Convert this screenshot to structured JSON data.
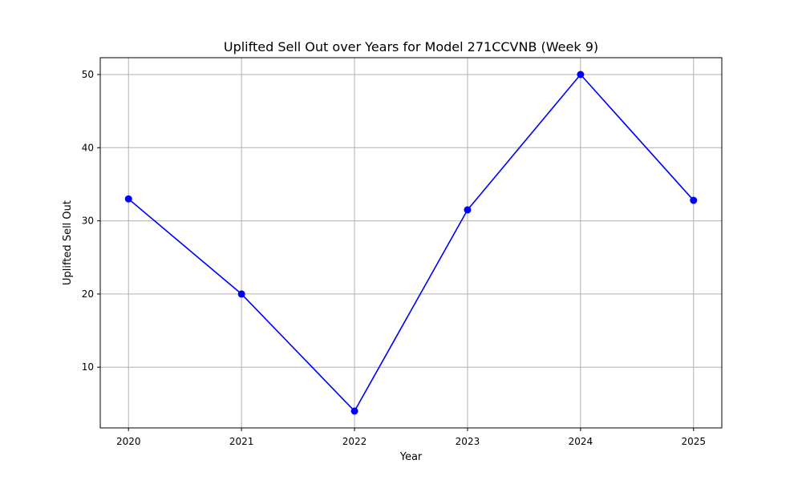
{
  "chart_data": {
    "type": "line",
    "title": "Uplifted Sell Out over Years for Model 271CCVNB (Week 9)",
    "xlabel": "Year",
    "ylabel": "Uplifted Sell Out",
    "x": [
      2020,
      2021,
      2022,
      2023,
      2024,
      2025
    ],
    "x_tick_labels": [
      "2020",
      "2021",
      "2022",
      "2023",
      "2024",
      "2025"
    ],
    "y_ticks": [
      10,
      20,
      30,
      40,
      50
    ],
    "y_tick_labels": [
      "10",
      "20",
      "30",
      "40",
      "50"
    ],
    "xlim": [
      2019.75,
      2025.25
    ],
    "ylim": [
      1.7,
      52.3
    ],
    "series": [
      {
        "values": [
          33.0,
          20.0,
          4.0,
          31.5,
          50.0,
          32.8
        ],
        "color": "#0000ff",
        "marker": "circle"
      }
    ],
    "grid": true,
    "legend": "none",
    "grid_color": "#b0b0b0"
  }
}
